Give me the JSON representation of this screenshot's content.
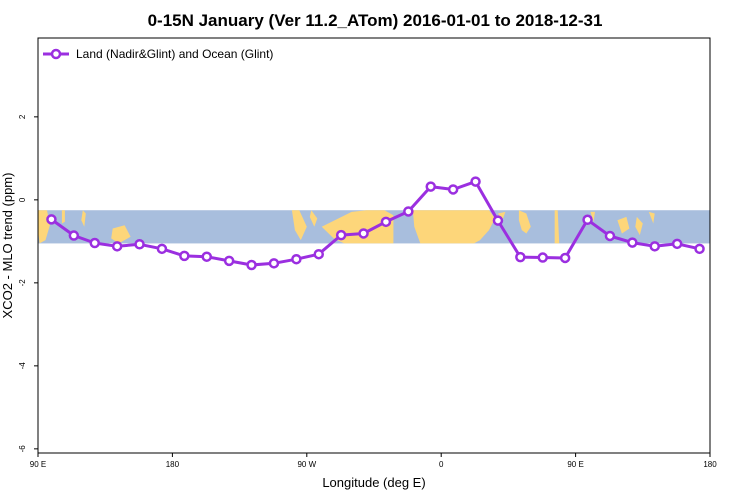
{
  "chart_data": {
    "type": "line",
    "title": "0-15N January (Ver 11.2_ATom)   2016-01-01 to 2018-12-31",
    "xlabel": "Longitude (deg E)",
    "ylabel": "XCO2 - MLO trend (ppm)",
    "x_ticks": [
      {
        "value": 90,
        "label": "90 E"
      },
      {
        "value": 180,
        "label": "180"
      },
      {
        "value": 270,
        "label": "90 W"
      },
      {
        "value": 360,
        "label": "0"
      },
      {
        "value": 450,
        "label": "90 E"
      },
      {
        "value": 540,
        "label": "180"
      }
    ],
    "y_ticks": [
      {
        "value": 2,
        "label": "2"
      },
      {
        "value": 0,
        "label": "0"
      },
      {
        "value": -2,
        "label": "-2"
      },
      {
        "value": -4,
        "label": "-4"
      },
      {
        "value": -6,
        "label": "-6"
      }
    ],
    "xlim": [
      90,
      540
    ],
    "ylim": [
      -6.1,
      3.9
    ],
    "grid": false,
    "legend_position": "top-left",
    "map_band": {
      "lat_range": "0-15N",
      "y_range": [
        -1.05,
        -0.25
      ],
      "ocean_color": "#a8bedd",
      "land_color": "#fdd67a"
    },
    "series": [
      {
        "name": "Land (Nadir&Glint) and Ocean (Glint)",
        "color": "#9b2fe0",
        "x": [
          99,
          114,
          128,
          143,
          158,
          173,
          188,
          203,
          218,
          233,
          248,
          263,
          278,
          293,
          308,
          323,
          338,
          353,
          368,
          383,
          398,
          413,
          428,
          443,
          458,
          473,
          488,
          503,
          518,
          533
        ],
        "y": [
          -0.47,
          -0.86,
          -1.04,
          -1.12,
          -1.07,
          -1.18,
          -1.35,
          -1.37,
          -1.47,
          -1.57,
          -1.53,
          -1.43,
          -1.31,
          -0.85,
          -0.81,
          -0.53,
          -0.28,
          0.32,
          0.25,
          0.44,
          -0.5,
          -1.38,
          -1.39,
          -1.4,
          -0.48,
          -0.87,
          -1.03,
          -1.12,
          -1.06,
          -1.18
        ]
      }
    ]
  }
}
